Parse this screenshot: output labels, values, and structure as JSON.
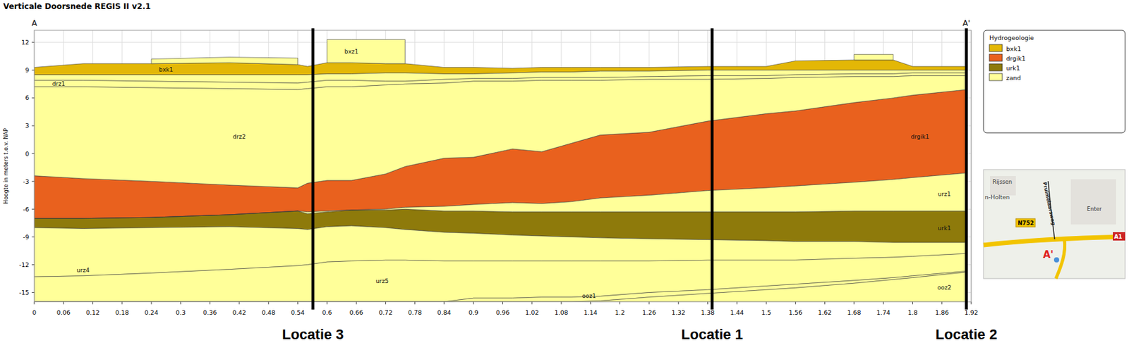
{
  "chart_data": {
    "type": "cross_section",
    "title": "Verticale Doorsnede REGIS II v2.1",
    "ylabel": "Hoogte in meters t.o.v. NAP",
    "section_ends": [
      "A",
      "A'"
    ],
    "legend_title": "Hydrogeologie",
    "legend": "right",
    "grid": true,
    "xlim": [
      0,
      1.92
    ],
    "xticks": [
      0,
      0.06,
      0.12,
      0.18,
      0.24,
      0.3,
      0.36,
      0.42,
      0.48,
      0.54,
      0.6,
      0.66,
      0.72,
      0.78,
      0.84,
      0.9,
      0.96,
      1.02,
      1.08,
      1.14,
      1.2,
      1.26,
      1.32,
      1.38,
      1.44,
      1.5,
      1.56,
      1.62,
      1.68,
      1.74,
      1.8,
      1.86,
      1.92
    ],
    "ylim": [
      -16,
      13.3
    ],
    "yticks": [
      -15,
      -12,
      -9,
      -6,
      -3,
      0,
      3,
      6,
      9,
      12
    ],
    "x": [
      0,
      0.1,
      0.24,
      0.4,
      0.54,
      0.56,
      0.6,
      0.65,
      0.72,
      0.76,
      0.84,
      0.9,
      0.98,
      1.04,
      1.1,
      1.16,
      1.26,
      1.38,
      1.5,
      1.56,
      1.68,
      1.76,
      1.8,
      1.91
    ],
    "series": [
      {
        "name": "bxk1",
        "color": "#e3b706",
        "top": [
          9.3,
          9.7,
          9.7,
          9.8,
          9.6,
          9.4,
          9.8,
          9.8,
          9.7,
          9.7,
          9.3,
          9.3,
          9.2,
          9.3,
          9.3,
          9.3,
          9.3,
          9.4,
          9.4,
          10.0,
          10.1,
          10.1,
          9.4,
          9.4
        ],
        "bottom": [
          8.5,
          8.5,
          8.5,
          8.5,
          8.5,
          8.5,
          8.6,
          8.6,
          8.7,
          8.7,
          8.6,
          8.6,
          8.7,
          8.8,
          8.8,
          8.9,
          8.9,
          9.0,
          9.0,
          9.0,
          9.0,
          9.0,
          9.0,
          9.0
        ]
      },
      {
        "name": "drgik1",
        "color": "#e9611e",
        "top": [
          -2.4,
          -2.7,
          -3.0,
          -3.4,
          -3.7,
          -3.2,
          -2.9,
          -2.9,
          -2.2,
          -1.4,
          -0.5,
          -0.4,
          0.5,
          0.2,
          1.1,
          2.0,
          2.3,
          3.5,
          4.3,
          4.6,
          5.5,
          6.0,
          6.3,
          6.9
        ],
        "bottom": [
          -7.0,
          -7.0,
          -6.9,
          -6.6,
          -6.2,
          -6.3,
          -6.2,
          -6.1,
          -6.0,
          -5.8,
          -5.7,
          -5.5,
          -5.3,
          -5.4,
          -5.2,
          -4.8,
          -4.5,
          -4.0,
          -3.7,
          -3.5,
          -3.1,
          -2.8,
          -2.6,
          -2.1
        ]
      },
      {
        "name": "urk1",
        "color": "#8e7a0b",
        "top": [
          -7.0,
          -7.0,
          -6.9,
          -6.6,
          -6.2,
          -6.5,
          -6.3,
          -6.1,
          -6.1,
          -6.0,
          -6.2,
          -6.2,
          -6.3,
          -6.3,
          -6.3,
          -6.3,
          -6.3,
          -6.3,
          -6.3,
          -6.3,
          -6.2,
          -6.2,
          -6.2,
          -6.2
        ],
        "bottom": [
          -8.0,
          -8.1,
          -8.0,
          -7.9,
          -8.1,
          -8.2,
          -7.9,
          -7.8,
          -8.0,
          -8.2,
          -8.5,
          -8.6,
          -8.8,
          -8.9,
          -9.0,
          -9.1,
          -9.2,
          -9.3,
          -9.4,
          -9.5,
          -9.5,
          -9.6,
          -9.6,
          -9.6
        ]
      },
      {
        "name": "zand",
        "color": "#ffff99",
        "top": [
          null,
          null,
          10.2,
          10.4,
          10.3,
          null,
          null,
          null,
          null,
          null,
          null,
          null,
          null,
          null,
          null,
          null,
          null,
          null,
          null,
          null,
          null,
          null,
          null,
          null
        ],
        "bottom": [
          null,
          null,
          9.7,
          9.8,
          9.6,
          null,
          null,
          null,
          null,
          null,
          null,
          null,
          null,
          null,
          null,
          null,
          null,
          null,
          null,
          null,
          null,
          null,
          null,
          null
        ]
      },
      {
        "name": "zand",
        "color": "#ffff99",
        "top": [
          null,
          null,
          null,
          null,
          null,
          null,
          12.3,
          12.3,
          12.3,
          12.3,
          null,
          null,
          null,
          null,
          null,
          null,
          null,
          null,
          null,
          null,
          null,
          null,
          null,
          null
        ],
        "bottom": [
          null,
          null,
          null,
          null,
          null,
          null,
          9.8,
          9.8,
          9.7,
          9.7,
          null,
          null,
          null,
          null,
          null,
          null,
          null,
          null,
          null,
          null,
          null,
          null,
          null,
          null
        ]
      },
      {
        "name": "zand",
        "color": "#ffff99",
        "top": [
          null,
          null,
          null,
          null,
          null,
          null,
          null,
          null,
          null,
          null,
          null,
          null,
          null,
          null,
          null,
          null,
          null,
          null,
          null,
          null,
          10.7,
          10.7,
          null,
          null
        ],
        "bottom": [
          null,
          null,
          null,
          null,
          null,
          null,
          null,
          null,
          null,
          null,
          null,
          null,
          null,
          null,
          null,
          null,
          null,
          null,
          null,
          null,
          10.1,
          10.1,
          null,
          null
        ]
      },
      {
        "name": "zand",
        "color": "#ffff99",
        "top": [
          8.5,
          8.5,
          8.5,
          8.5,
          8.5,
          8.5,
          8.6,
          8.6,
          8.7,
          8.7,
          8.6,
          8.6,
          8.7,
          8.8,
          8.8,
          8.9,
          8.9,
          9.0,
          9.0,
          9.0,
          9.0,
          9.0,
          9.0,
          9.0
        ],
        "bottom": [
          7.9,
          7.9,
          7.8,
          7.7,
          7.6,
          7.7,
          7.9,
          7.9,
          7.8,
          7.8,
          8.0,
          8.1,
          8.1,
          8.2,
          8.2,
          8.2,
          8.3,
          8.4,
          8.4,
          8.5,
          8.6,
          8.6,
          8.7,
          8.7
        ]
      },
      {
        "name": "zand",
        "color": "#ffff99",
        "top": [
          7.9,
          7.9,
          7.8,
          7.7,
          7.6,
          7.7,
          7.9,
          7.9,
          7.8,
          7.8,
          8.0,
          8.1,
          8.1,
          8.2,
          8.2,
          8.2,
          8.3,
          8.4,
          8.4,
          8.5,
          8.6,
          8.6,
          8.7,
          8.7
        ],
        "bottom": [
          7.2,
          7.2,
          7.1,
          7.0,
          6.9,
          7.0,
          7.2,
          7.2,
          7.4,
          7.5,
          7.6,
          7.8,
          7.8,
          7.9,
          7.9,
          7.9,
          8.0,
          8.0,
          8.1,
          8.2,
          8.3,
          8.3,
          8.4,
          8.4
        ]
      },
      {
        "name": "zand",
        "color": "#ffff99",
        "top": [
          7.2,
          7.2,
          7.1,
          7.0,
          6.9,
          7.0,
          7.2,
          7.2,
          7.4,
          7.5,
          7.6,
          7.8,
          7.8,
          7.9,
          7.9,
          7.9,
          8.0,
          8.0,
          8.1,
          8.2,
          8.3,
          8.3,
          8.4,
          8.4
        ],
        "bottom": [
          -2.4,
          -2.7,
          -3.0,
          -3.4,
          -3.7,
          -3.2,
          -2.9,
          -2.9,
          -2.2,
          -1.4,
          -0.5,
          -0.4,
          0.5,
          0.2,
          1.1,
          2.0,
          2.3,
          3.5,
          4.3,
          4.6,
          5.5,
          6.0,
          6.3,
          6.9
        ]
      },
      {
        "name": "zand",
        "color": "#ffff99",
        "top": [
          -7.0,
          -7.0,
          -6.9,
          -6.6,
          -6.2,
          -6.3,
          -6.2,
          -6.1,
          -6.0,
          -5.8,
          -5.7,
          -5.5,
          -5.3,
          -5.4,
          -5.2,
          -4.8,
          -4.5,
          -4.0,
          -3.7,
          -3.5,
          -3.1,
          -2.8,
          -2.6,
          -2.1
        ],
        "bottom": [
          -7.0,
          -7.0,
          -6.9,
          -6.6,
          -6.2,
          -6.5,
          -6.3,
          -6.1,
          -6.1,
          -6.0,
          -6.2,
          -6.2,
          -6.3,
          -6.3,
          -6.3,
          -6.3,
          -6.3,
          -6.3,
          -6.3,
          -6.3,
          -6.2,
          -6.2,
          -6.2,
          -6.2
        ]
      },
      {
        "name": "zand",
        "color": "#ffff99",
        "top": [
          -8.0,
          -8.1,
          -8.0,
          -7.9,
          -8.1,
          -8.2,
          -7.9,
          -7.8,
          -8.0,
          -8.2,
          -8.5,
          -8.6,
          -8.8,
          -8.9,
          -9.0,
          -9.1,
          -9.2,
          -9.3,
          -9.4,
          -9.5,
          -9.5,
          -9.6,
          -9.6,
          -9.6
        ],
        "bottom": [
          -13.3,
          -13.2,
          -12.9,
          -12.5,
          -12.1,
          -12.0,
          -11.7,
          -11.6,
          -11.5,
          -11.5,
          -11.6,
          -11.6,
          -11.6,
          -11.6,
          -11.6,
          -11.6,
          -11.6,
          -11.5,
          -11.5,
          -11.5,
          -11.3,
          -11.2,
          -11.1,
          -10.8
        ]
      },
      {
        "name": "zand",
        "color": "#ffff99",
        "top": [
          -13.3,
          -13.2,
          -12.9,
          -12.5,
          -12.1,
          -12.0,
          -11.7,
          -11.6,
          -11.5,
          -11.5,
          -11.6,
          -11.6,
          -11.6,
          -11.6,
          -11.6,
          -11.6,
          -11.6,
          -11.5,
          -11.5,
          -11.5,
          -11.3,
          -11.2,
          -11.1,
          -10.8
        ],
        "bottom": [
          -16,
          -16,
          -16,
          -16,
          -16,
          -16,
          -16,
          -16,
          -16,
          -16,
          -16,
          -15.6,
          -15.6,
          -15.5,
          -15.5,
          -15.4,
          -15.0,
          -14.7,
          -14.3,
          -14.1,
          -13.7,
          -13.4,
          -13.2,
          -12.7
        ]
      },
      {
        "name": "zand",
        "color": "#ffff99",
        "top": [
          -16,
          -16,
          -16,
          -16,
          -16,
          -16,
          -16,
          -16,
          -16,
          -16,
          -16,
          -15.6,
          -15.6,
          -15.5,
          -15.5,
          -15.4,
          -15.0,
          -14.7,
          -14.3,
          -14.1,
          -13.7,
          -13.4,
          -13.2,
          -12.7
        ],
        "bottom": [
          -16,
          -16,
          -16,
          -16,
          -16,
          -16,
          -16,
          -16,
          -16,
          -16,
          -16,
          -16,
          -16,
          -16,
          -16,
          -15.9,
          -15.5,
          -15.1,
          -14.7,
          -14.5,
          -14.0,
          -13.6,
          -13.4,
          -12.8
        ]
      },
      {
        "name": "zand",
        "color": "#ffff99",
        "top": [
          -16,
          -16,
          -16,
          -16,
          -16,
          -16,
          -16,
          -16,
          -16,
          -16,
          -16,
          -16,
          -16,
          -16,
          -16,
          -15.9,
          -15.5,
          -15.1,
          -14.7,
          -14.5,
          -14.0,
          -13.6,
          -13.4,
          -12.8
        ],
        "bottom": [
          -16,
          -16,
          -16,
          -16,
          -16,
          -16,
          -16,
          -16,
          -16,
          -16,
          -16,
          -16,
          -16,
          -16,
          -16,
          -16,
          -16,
          -16,
          -16,
          -16,
          -16,
          -16,
          -16,
          -16
        ]
      }
    ],
    "labels": [
      {
        "text": "bxk1",
        "x": 0.27,
        "y": 9.05
      },
      {
        "text": "bxz1",
        "x": 0.65,
        "y": 11.0
      },
      {
        "text": "drz1",
        "x": 0.05,
        "y": 7.55
      },
      {
        "text": "drz2",
        "x": 0.42,
        "y": 1.8
      },
      {
        "text": "drgik1",
        "x": 1.815,
        "y": 1.8
      },
      {
        "text": "urz1",
        "x": 1.865,
        "y": -4.4
      },
      {
        "text": "urk1",
        "x": 1.865,
        "y": -8.1
      },
      {
        "text": "urz4",
        "x": 0.1,
        "y": -12.6
      },
      {
        "text": "urz5",
        "x": 0.713,
        "y": -13.8
      },
      {
        "text": "ooz1",
        "x": 1.137,
        "y": -15.4
      },
      {
        "text": "ooz2",
        "x": 1.865,
        "y": -14.5
      }
    ],
    "sections": [
      {
        "label": "Locatie 3",
        "x": 0.571
      },
      {
        "label": "Locatie 1",
        "x": 1.389
      },
      {
        "label": "Locatie 2",
        "x": 1.91
      }
    ]
  },
  "map": {
    "labels": [
      "Rijssen",
      "n-Holten",
      "Enter",
      "N752",
      "A1",
      "A'",
      "Pruimelaarsweg"
    ]
  }
}
